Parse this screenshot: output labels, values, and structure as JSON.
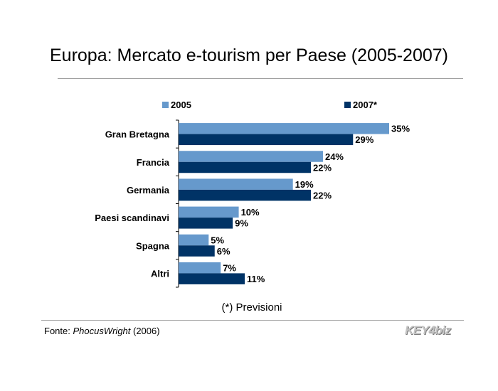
{
  "title": "Europa: Mercato e-tourism per Paese (2005-2007)",
  "footnote": "(*) Previsioni",
  "source": {
    "prefix": "Fonte: ",
    "name": "PhocusWright",
    "suffix": " (2006)"
  },
  "logo": "KEY4biz",
  "colors": {
    "series_2005": "#6699cc",
    "series_2007": "#003366"
  },
  "chart_data": {
    "type": "bar",
    "orientation": "horizontal",
    "categories": [
      "Gran Bretagna",
      "Francia",
      "Germania",
      "Paesi scandinavi",
      "Spagna",
      "Altri"
    ],
    "series": [
      {
        "name": "2005",
        "values": [
          35,
          24,
          19,
          10,
          5,
          7
        ],
        "labels": [
          "35%",
          "24%",
          "19%",
          "10%",
          "5%",
          "7%"
        ]
      },
      {
        "name": "2007*",
        "values": [
          29,
          22,
          22,
          9,
          6,
          11
        ],
        "labels": [
          "29%",
          "22%",
          "22%",
          "9%",
          "6%",
          "11%"
        ]
      }
    ],
    "xlim": [
      0,
      35
    ],
    "legend": "top",
    "grid": false
  }
}
